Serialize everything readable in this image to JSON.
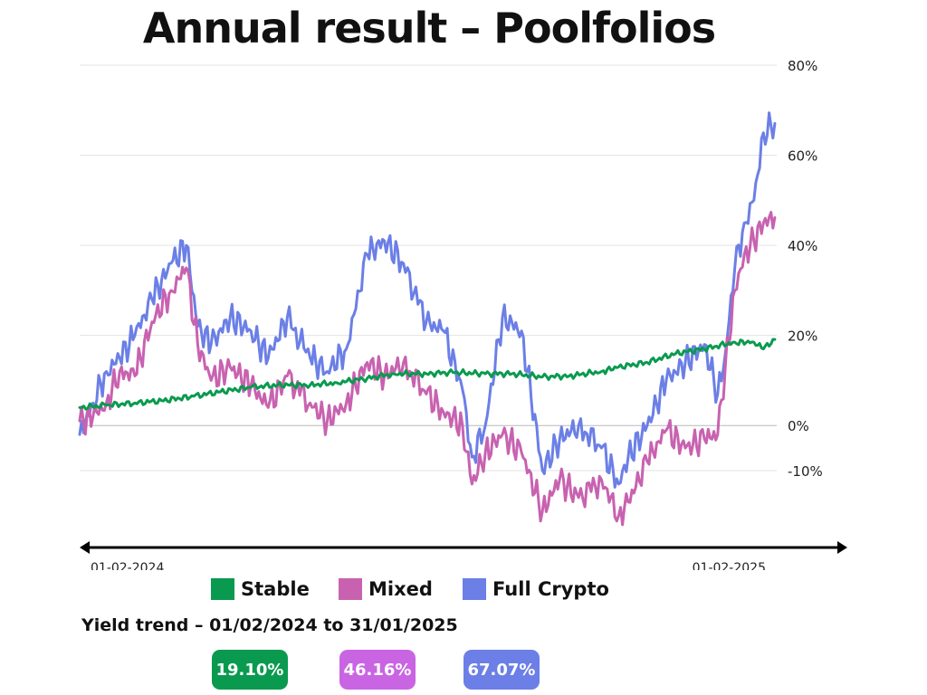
{
  "title": "Annual result – Poolfolios",
  "chart_data": {
    "type": "line",
    "title": "Annual result – Poolfolios",
    "xlabel": "",
    "ylabel": "",
    "x_start_label": "01-02-2024",
    "x_end_label": "01-02-2025",
    "xlim": [
      "2024-02-01",
      "2025-02-01"
    ],
    "ylim": [
      -10,
      80
    ],
    "y_ticks": [
      80,
      60,
      40,
      20,
      0,
      -10
    ],
    "y_tick_labels": [
      "80%",
      "60%",
      "40%",
      "20%",
      "0%",
      "-10%"
    ],
    "grid": true,
    "legend_position": "bottom",
    "series": [
      {
        "name": "Stable",
        "color": "#0a9a4f",
        "points": [
          [
            "2024-02-01",
            4
          ],
          [
            "2024-02-15",
            4.5
          ],
          [
            "2024-03-01",
            5
          ],
          [
            "2024-03-15",
            5.5
          ],
          [
            "2024-04-01",
            6.5
          ],
          [
            "2024-04-15",
            7.5
          ],
          [
            "2024-05-01",
            8.5
          ],
          [
            "2024-05-15",
            9
          ],
          [
            "2024-06-01",
            9
          ],
          [
            "2024-06-15",
            9.5
          ],
          [
            "2024-07-01",
            10.5
          ],
          [
            "2024-07-15",
            11.5
          ],
          [
            "2024-08-01",
            11.5
          ],
          [
            "2024-08-15",
            11.8
          ],
          [
            "2024-09-01",
            11.5
          ],
          [
            "2024-09-15",
            11.5
          ],
          [
            "2024-10-01",
            10.8
          ],
          [
            "2024-10-15",
            11
          ],
          [
            "2024-11-01",
            12
          ],
          [
            "2024-11-10",
            13
          ],
          [
            "2024-11-25",
            14
          ],
          [
            "2024-12-10",
            16
          ],
          [
            "2024-12-25",
            17
          ],
          [
            "2025-01-10",
            18.5
          ],
          [
            "2025-01-20",
            18.5
          ],
          [
            "2025-01-25",
            17
          ],
          [
            "2025-01-31",
            19.1
          ]
        ]
      },
      {
        "name": "Mixed",
        "color": "#c862b0",
        "points": [
          [
            "2024-02-01",
            1
          ],
          [
            "2024-02-08",
            2
          ],
          [
            "2024-02-15",
            5
          ],
          [
            "2024-02-22",
            12
          ],
          [
            "2024-03-01",
            11
          ],
          [
            "2024-03-10",
            23
          ],
          [
            "2024-03-20",
            30
          ],
          [
            "2024-03-28",
            35
          ],
          [
            "2024-04-03",
            18
          ],
          [
            "2024-04-10",
            10
          ],
          [
            "2024-04-20",
            13
          ],
          [
            "2024-05-01",
            9
          ],
          [
            "2024-05-10",
            4
          ],
          [
            "2024-05-20",
            11
          ],
          [
            "2024-06-01",
            5
          ],
          [
            "2024-06-10",
            1
          ],
          [
            "2024-06-20",
            5
          ],
          [
            "2024-07-01",
            14
          ],
          [
            "2024-07-10",
            11
          ],
          [
            "2024-07-20",
            14
          ],
          [
            "2024-08-01",
            7
          ],
          [
            "2024-08-10",
            3
          ],
          [
            "2024-08-20",
            0
          ],
          [
            "2024-08-25",
            -13
          ],
          [
            "2024-09-01",
            -6
          ],
          [
            "2024-09-10",
            -2
          ],
          [
            "2024-09-20",
            -6
          ],
          [
            "2024-10-01",
            -19
          ],
          [
            "2024-10-10",
            -12
          ],
          [
            "2024-10-20",
            -16
          ],
          [
            "2024-11-01",
            -12
          ],
          [
            "2024-11-10",
            -20
          ],
          [
            "2024-11-15",
            -17
          ],
          [
            "2024-11-25",
            -8
          ],
          [
            "2024-12-05",
            -1
          ],
          [
            "2024-12-15",
            -5
          ],
          [
            "2024-12-25",
            -3
          ],
          [
            "2025-01-01",
            -2
          ],
          [
            "2025-01-05",
            13
          ],
          [
            "2025-01-10",
            30
          ],
          [
            "2025-01-15",
            38
          ],
          [
            "2025-01-20",
            41
          ],
          [
            "2025-01-25",
            45
          ],
          [
            "2025-01-31",
            46.16
          ]
        ]
      },
      {
        "name": "Full Crypto",
        "color": "#6b7fe6",
        "points": [
          [
            "2024-02-01",
            -2
          ],
          [
            "2024-02-08",
            5
          ],
          [
            "2024-02-15",
            12
          ],
          [
            "2024-02-22",
            15
          ],
          [
            "2024-03-01",
            20
          ],
          [
            "2024-03-10",
            28
          ],
          [
            "2024-03-20",
            36
          ],
          [
            "2024-03-28",
            40
          ],
          [
            "2024-04-03",
            22
          ],
          [
            "2024-04-10",
            18
          ],
          [
            "2024-04-20",
            24
          ],
          [
            "2024-05-01",
            21
          ],
          [
            "2024-05-10",
            15
          ],
          [
            "2024-05-20",
            24
          ],
          [
            "2024-06-01",
            15
          ],
          [
            "2024-06-10",
            12
          ],
          [
            "2024-06-20",
            17
          ],
          [
            "2024-07-01",
            38
          ],
          [
            "2024-07-10",
            41
          ],
          [
            "2024-07-20",
            36
          ],
          [
            "2024-08-01",
            23
          ],
          [
            "2024-08-10",
            21
          ],
          [
            "2024-08-20",
            8
          ],
          [
            "2024-08-25",
            -7
          ],
          [
            "2024-09-01",
            0
          ],
          [
            "2024-09-10",
            24
          ],
          [
            "2024-09-20",
            21
          ],
          [
            "2024-10-01",
            -10
          ],
          [
            "2024-10-10",
            -3
          ],
          [
            "2024-10-20",
            0
          ],
          [
            "2024-11-01",
            -5
          ],
          [
            "2024-11-10",
            -13
          ],
          [
            "2024-11-15",
            -7
          ],
          [
            "2024-11-25",
            0
          ],
          [
            "2024-12-05",
            10
          ],
          [
            "2024-12-15",
            14
          ],
          [
            "2024-12-25",
            18
          ],
          [
            "2025-01-01",
            7
          ],
          [
            "2025-01-05",
            16
          ],
          [
            "2025-01-10",
            35
          ],
          [
            "2025-01-15",
            45
          ],
          [
            "2025-01-20",
            50
          ],
          [
            "2025-01-25",
            65
          ],
          [
            "2025-01-31",
            67.07
          ]
        ]
      }
    ]
  },
  "legend": [
    {
      "label": "Stable",
      "color": "#0a9a4f"
    },
    {
      "label": "Mixed",
      "color": "#c862b0"
    },
    {
      "label": "Full Crypto",
      "color": "#6b7fe6"
    }
  ],
  "yield": {
    "title": "Yield trend – 01/02/2024 to 31/01/2025",
    "badges": [
      {
        "value": "19.10%",
        "color": "#0a9a4f"
      },
      {
        "value": "46.16%",
        "color": "#c965e3"
      },
      {
        "value": "67.07%",
        "color": "#6b7fe6"
      }
    ]
  }
}
